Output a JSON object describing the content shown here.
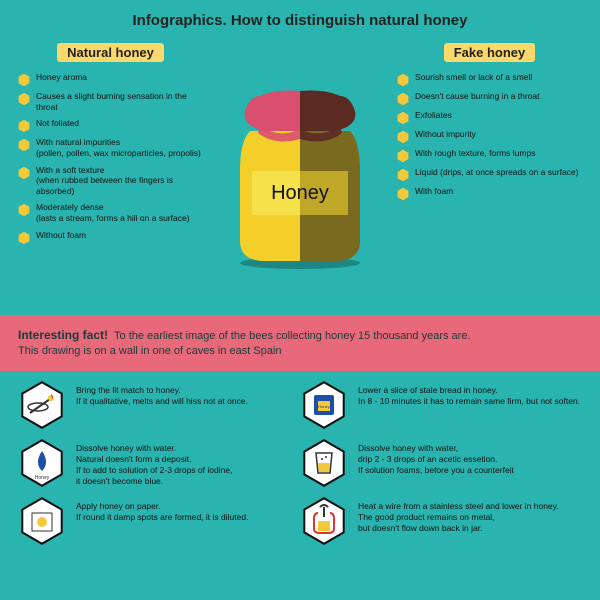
{
  "colors": {
    "bg": "#29b4af",
    "factBg": "#e86a7a",
    "titleBg": "#f9d96b",
    "bullet": "#f3c93a",
    "jarLight": "#f5cf29",
    "jarDark": "#7a6a1f",
    "lidLight": "#d94f6e",
    "lidDark": "#5a2a23",
    "labelLight": "#f5e14a",
    "labelDark": "#bfa828",
    "hexOutline": "#111",
    "hexFill": "#fff",
    "iconYellow": "#f3c93a",
    "iconBlue": "#1b4fa8",
    "iconRed": "#d33"
  },
  "title": "Infographics. How to distinguish natural honey",
  "left": {
    "title": "Natural honey",
    "items": [
      "Honey aroma",
      "Causes a slight burning sensation in the throat",
      "Not foliated",
      "With natural impurities\n(pollen, pollen, wax microparticles, propolis)",
      "With a soft texture\n(when rubbed between the fingers is absorbed)",
      "Moderately dense\n(lasts a stream, forms a hill on a surface)",
      "Without foam"
    ]
  },
  "right": {
    "title": "Fake honey",
    "items": [
      "Sourish smell or lack of a smell",
      "Doesn't cause burning in a throat",
      "Exfoliates",
      "Without impurity",
      "With rough texture, forms lumps",
      "Liquid (drips, at once spreads on a surface)",
      "With foam"
    ]
  },
  "jarLabel": "Honey",
  "fact": {
    "lead": "Interesting fact!",
    "text": "To the earliest image of the bees collecting honey 15 thousand years are.\nThis drawing is on a wall in one of caves in east Spain"
  },
  "tests": [
    {
      "icon": "match",
      "text": "Bring the lit match to honey.\nIf it qualitative, melts and will hiss not at once."
    },
    {
      "icon": "bread",
      "text": "Lower a slice of stale bread in honey.\nIn 8 - 10 minutes it has to remain same firm, but not soften."
    },
    {
      "icon": "drop",
      "text": "Dissolve honey with water.\nNatural doesn't form a deposit.\nIf to add to solution of 2-3 drops of iodine,\nit doesn't become blue."
    },
    {
      "icon": "glass",
      "text": "Dissolve honey with water,\ndrip 2 - 3 drops of an acetic essetion.\nIf solution foams, before you a counterfeit"
    },
    {
      "icon": "paper",
      "text": "Apply honey on paper.\nIf round it damp spots are formed, it is diluted."
    },
    {
      "icon": "wire",
      "text": "Heat a wire from a stainless steel and lower in honey.\nThe good product remains on metal,\nbut doesn't flow down back in jar."
    }
  ]
}
